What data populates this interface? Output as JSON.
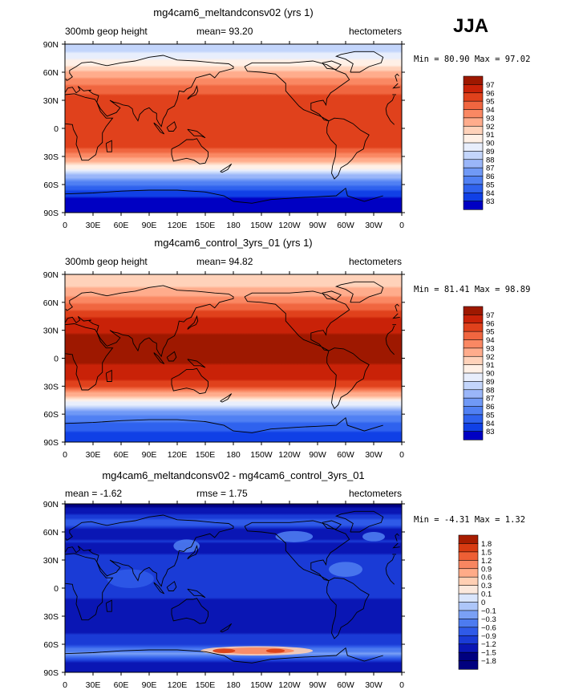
{
  "season": "JJA",
  "colors": {
    "abs_scale": [
      "#00007f",
      "#0000c3",
      "#1040e6",
      "#2f62ee",
      "#5080f3",
      "#7099f6",
      "#9ab6f9",
      "#c3d5fb",
      "#e8eefc",
      "#fff0e6",
      "#ffd2ba",
      "#ffac8c",
      "#fa8863",
      "#f06640",
      "#e0411c",
      "#c92208",
      "#9e1800"
    ],
    "diff_scale": [
      "#00007f",
      "#0a16b4",
      "#1a3bd6",
      "#2f5ae8",
      "#4d7bf0",
      "#7aa0f5",
      "#adc6f9",
      "#d9e5fc",
      "#fbe8dc",
      "#ffcfb3",
      "#ffab88",
      "#f88661",
      "#ee5f35",
      "#d83b12",
      "#a81d00"
    ]
  },
  "chart_data": [
    {
      "type": "heatmap",
      "title": "mg4cam6_meltandconsv02 (yrs 1)",
      "field": "300mb geop height",
      "stat_label": "mean=",
      "stat_value": "93.20",
      "units": "hectometers",
      "min_label": "Min =",
      "min_value": "80.90",
      "max_label": "Max =",
      "max_value": "97.02",
      "xlabel": "",
      "ylabel": "",
      "x_ticks": [
        "0",
        "30E",
        "60E",
        "90E",
        "120E",
        "150E",
        "180",
        "150W",
        "120W",
        "90W",
        "60W",
        "30W",
        "0"
      ],
      "y_ticks": [
        "90N",
        "60N",
        "30N",
        "0",
        "30S",
        "60S",
        "90S"
      ],
      "lat_profile": {
        "lat": [
          90,
          80,
          70,
          60,
          50,
          40,
          30,
          20,
          10,
          0,
          -10,
          -20,
          -30,
          -40,
          -50,
          -60,
          -70,
          -80,
          -90
        ],
        "values": [
          89.3,
          90.2,
          91.4,
          93.0,
          94.6,
          95.8,
          96.5,
          96.7,
          96.8,
          96.7,
          96.5,
          96.0,
          94.6,
          91.8,
          88.7,
          86.0,
          84.3,
          83.5,
          83.2
        ]
      },
      "colorbar_levels": [
        "97",
        "96",
        "95",
        "94",
        "93",
        "92",
        "91",
        "90",
        "89",
        "88",
        "87",
        "86",
        "85",
        "84",
        "83"
      ]
    },
    {
      "type": "heatmap",
      "title": "mg4cam6_control_3yrs_01 (yrs 1)",
      "field": "300mb geop height",
      "stat_label": "mean=",
      "stat_value": "94.82",
      "units": "hectometers",
      "min_label": "Min =",
      "min_value": "81.41",
      "max_label": "Max =",
      "max_value": "98.89",
      "xlabel": "",
      "ylabel": "",
      "x_ticks": [
        "0",
        "30E",
        "60E",
        "90E",
        "120E",
        "150E",
        "180",
        "150W",
        "120W",
        "90W",
        "60W",
        "30W",
        "0"
      ],
      "y_ticks": [
        "90N",
        "60N",
        "30N",
        "0",
        "30S",
        "60S",
        "90S"
      ],
      "lat_profile": {
        "lat": [
          90,
          80,
          70,
          60,
          50,
          40,
          30,
          20,
          10,
          0,
          -10,
          -20,
          -30,
          -40,
          -50,
          -60,
          -70,
          -80,
          -90
        ],
        "values": [
          92.0,
          92.6,
          93.4,
          94.8,
          96.2,
          97.3,
          97.9,
          98.1,
          98.2,
          98.1,
          97.9,
          97.4,
          96.0,
          93.2,
          90.0,
          87.3,
          85.6,
          84.8,
          84.5
        ]
      },
      "colorbar_levels": [
        "97",
        "96",
        "95",
        "94",
        "93",
        "92",
        "91",
        "90",
        "89",
        "88",
        "87",
        "86",
        "85",
        "84",
        "83"
      ]
    },
    {
      "type": "heatmap",
      "title": "mg4cam6_meltandconsv02 - mg4cam6_control_3yrs_01",
      "field_label": "mean =",
      "field_value": "-1.62",
      "stat_label": "rmse =",
      "stat_value": "1.75",
      "units": "hectometers",
      "min_label": "Min =",
      "min_value": "-4.31",
      "max_label": "Max =",
      "max_value": "1.32",
      "xlabel": "",
      "ylabel": "",
      "x_ticks": [
        "0",
        "30E",
        "60E",
        "90E",
        "120E",
        "150E",
        "180",
        "150W",
        "120W",
        "90W",
        "60W",
        "30W",
        "0"
      ],
      "y_ticks": [
        "90N",
        "60N",
        "30N",
        "0",
        "30S",
        "60S",
        "90S"
      ],
      "lat_profile": {
        "lat": [
          90,
          80,
          70,
          60,
          50,
          40,
          30,
          20,
          10,
          0,
          -10,
          -20,
          -30,
          -40,
          -50,
          -60,
          -70,
          -80,
          -90
        ],
        "values": [
          -1.9,
          -1.6,
          -1.0,
          -1.7,
          -1.5,
          -1.6,
          -1.4,
          -1.5,
          -1.5,
          -1.5,
          -1.5,
          -1.6,
          -1.7,
          -1.6,
          -1.5,
          -1.4,
          -0.4,
          -1.8,
          -1.6
        ]
      },
      "colorbar_levels": [
        "1.8",
        "1.5",
        "1.2",
        "0.9",
        "0.6",
        "0.3",
        "0.1",
        "0",
        "−0.1",
        "−0.3",
        "−0.6",
        "−0.9",
        "−1.2",
        "−1.5",
        "−1.8"
      ]
    }
  ]
}
